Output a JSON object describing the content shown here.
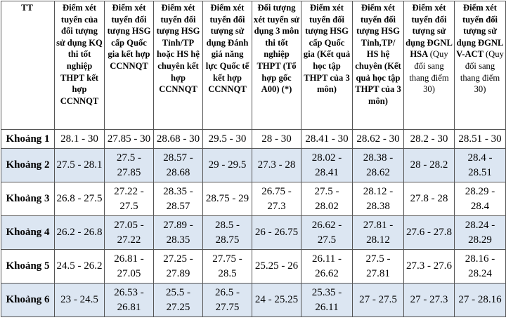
{
  "table": {
    "header": [
      {
        "text": "TT"
      },
      {
        "text": "Điểm xét tuyển của đối tượng sử dụng KQ thi tốt nghiệp THPT kết hợp CCNNQT"
      },
      {
        "text": "Điểm xét tuyển đối tượng HSG cấp Quốc gia kết hợp CCNNQT"
      },
      {
        "text": "Điểm xét tuyển đối tượng HSG Tỉnh/TP hoặc HS hệ chuyên kết hợp CCNNQT"
      },
      {
        "text": "Điểm xét tuyển đối tượng sử dụng Đánh giá năng lực Quốc tế kết hợp CCNNQT"
      },
      {
        "text": "Đối tượng xét tuyển sử dụng 3 môn thi tốt nghiệp THPT (Tổ hợp gốc A00) (*)"
      },
      {
        "text": "Điểm xét tuyển đối tượng HSG cấp Quốc gia (Kết quả học tập THPT của 3 môn)"
      },
      {
        "text": "Điểm xét tuyển đối tượng HSG Tỉnh,TP/ HS hệ chuyên (Kết quả học tập THPT của 3 môn)"
      },
      {
        "text": "Điểm xét tuyển đối tượng sử dụng ĐGNL HSA",
        "note": "(Quy đổi sang thang điểm 30)"
      },
      {
        "text": "Điểm xét tuyển đối tượng sử dụng ĐGNL V-ACT",
        "note": "(Quy đổi sang thang điểm 30)"
      }
    ],
    "rows": [
      [
        "Khoảng 1",
        "28.1 - 30",
        "27.85 - 30",
        "28.68 - 30",
        "29.5 - 30",
        "28 - 30",
        "28.41 - 30",
        "28.62 - 30",
        "28.2 - 30",
        "28.51 - 30"
      ],
      [
        "Khoảng 2",
        "27.5 - 28.1",
        "27.5 - 27.85",
        "28.57 - 28.68",
        "29 - 29.5",
        "27.3 - 28",
        "28.02 - 28.41",
        "28.38 - 28.62",
        "28 - 28.2",
        "28.4 - 28.51"
      ],
      [
        "Khoảng 3",
        "26.8 - 27.5",
        "27.22 - 27.5",
        "28.35 - 28.57",
        "28.75 - 29",
        "26.75 - 27.3",
        "27.5 - 28.02",
        "28.12 - 28.38",
        "27.8 - 28",
        "28.29 - 28.4"
      ],
      [
        "Khoảng 4",
        "26.2 - 26.8",
        "27.05 - 27.22",
        "27.89 - 28.35",
        "28.5 - 28.75",
        "26 - 26.75",
        "26.62 - 27.5",
        "27.81 - 28.12",
        "27.6 - 27.8",
        "28.24 - 28.29"
      ],
      [
        "Khoảng 5",
        "24.5 - 26.2",
        "26.81 - 27.05",
        "27.25 - 27.89",
        "27.75 - 28.5",
        "25.25 - 26",
        "26.11 - 26.62",
        "27.5 - 27.81",
        "27.3 - 27.6",
        "28.16 - 28.24"
      ],
      [
        "Khoảng 6",
        "23 - 24.5",
        "26.53 - 26.81",
        "25.5 - 27.25",
        "26.5 - 27.75",
        "24 - 25.25",
        "25.35 - 26.11",
        "27 - 27.5",
        "27 - 27.3",
        "27 - 28.16"
      ]
    ]
  }
}
